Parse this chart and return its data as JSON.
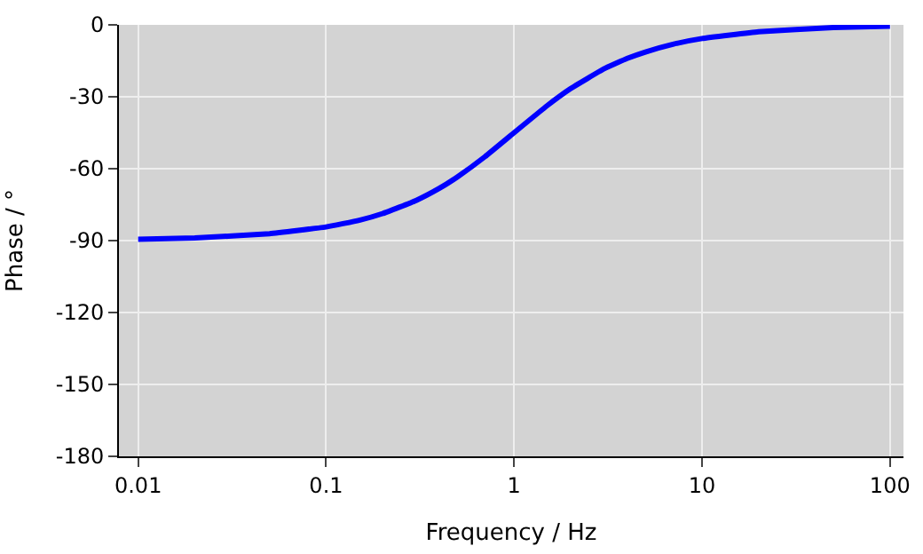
{
  "chart_data": {
    "type": "line",
    "xlabel": "Frequency / Hz",
    "ylabel": "Phase / °",
    "log": "x",
    "x": [
      0.01,
      0.02,
      0.05,
      0.1,
      0.15,
      0.2,
      0.3,
      0.4,
      0.5,
      0.7,
      1,
      1.5,
      2,
      3,
      4,
      5,
      7,
      10,
      20,
      50,
      100
    ],
    "series": [
      {
        "color": "#0000ff",
        "values": [
          -89.4,
          -88.9,
          -87.1,
          -84.3,
          -81.5,
          -78.7,
          -73.3,
          -68.2,
          -63.4,
          -55.0,
          -45,
          -33.7,
          -26.6,
          -18.4,
          -14.0,
          -11.3,
          -8.1,
          -5.7,
          -2.9,
          -1.1,
          -0.6
        ]
      }
    ],
    "xlim": [
      0.0079,
      118
    ],
    "xticks": [
      0.01,
      0.1,
      1,
      10,
      100
    ],
    "ylim": [
      -180,
      0
    ],
    "yticks": [
      -180,
      -150,
      -120,
      -90,
      -60,
      -30,
      0
    ],
    "grid": true,
    "marker": "none",
    "line_style": "solid"
  }
}
